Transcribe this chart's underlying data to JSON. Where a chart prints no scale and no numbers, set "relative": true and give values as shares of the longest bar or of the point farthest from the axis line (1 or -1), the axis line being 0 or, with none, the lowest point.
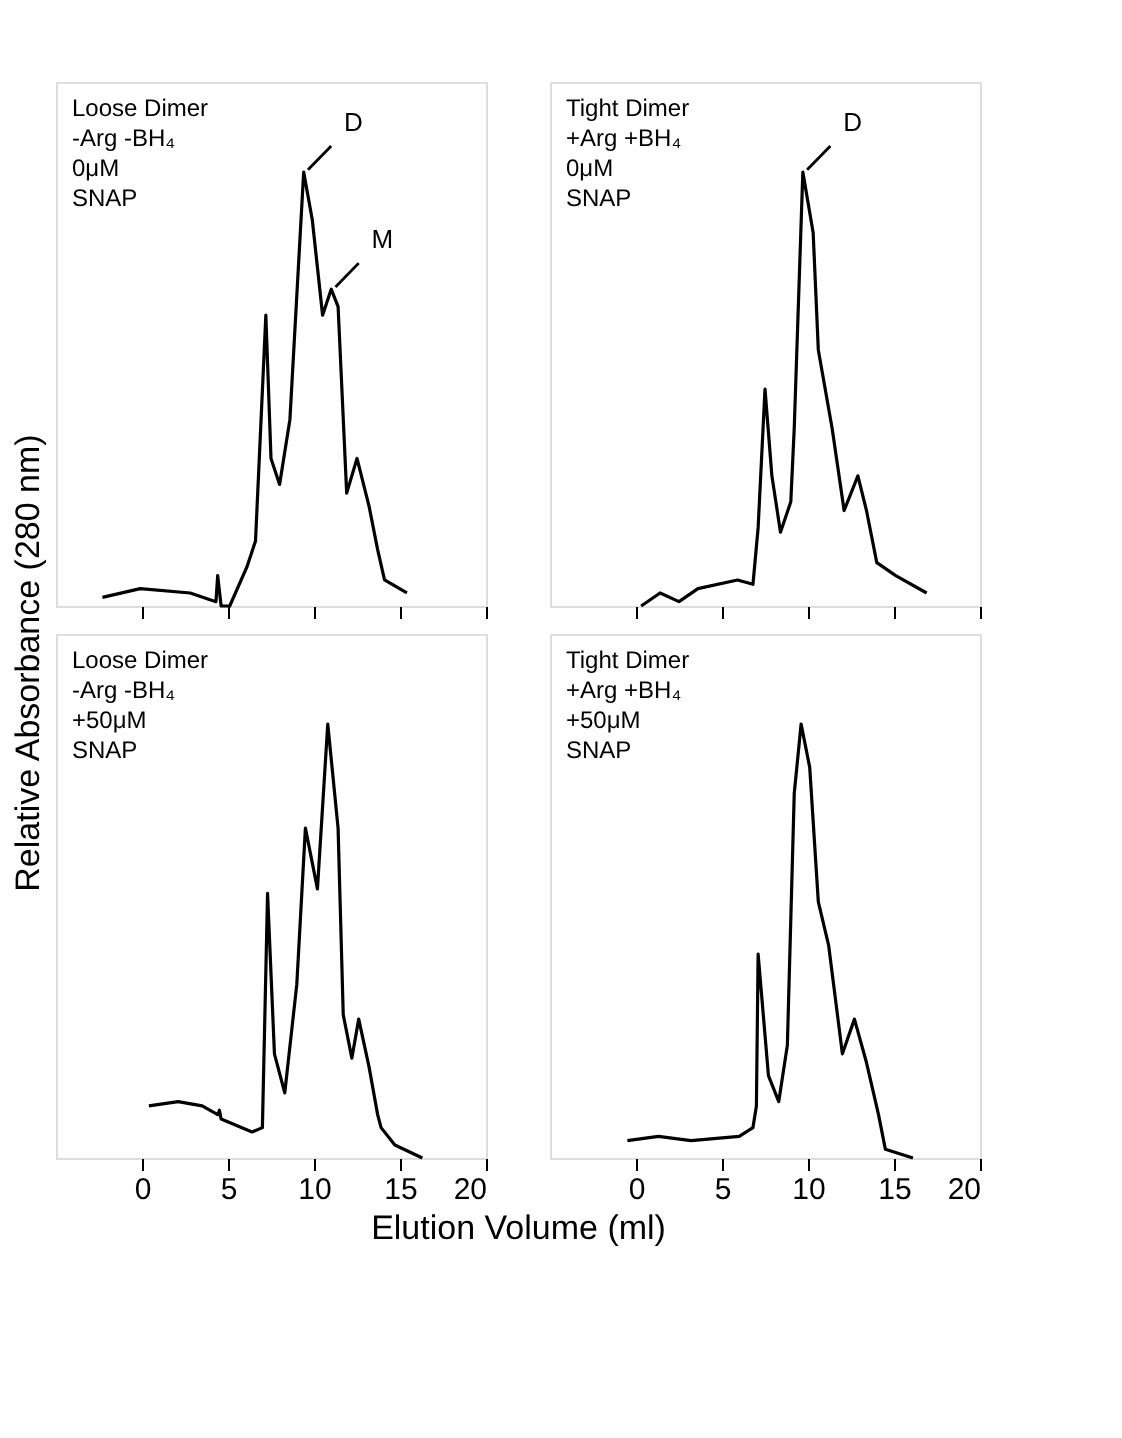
{
  "chart_data": [
    {
      "type": "line",
      "relative": true,
      "ylabel": "Relative Absorbance (280 nm)",
      "xlim": [
        -5,
        20
      ],
      "xticks": [
        0,
        5,
        10,
        15,
        20
      ],
      "tick_labels": false,
      "grid": false,
      "line_style": "solid",
      "marker": "none",
      "annotations": [
        "Loose Dimer",
        "-Arg -BH₄",
        "0μM",
        "SNAP",
        {
          "text": "D",
          "x": 9.4,
          "y": 1.0
        },
        {
          "text": "M",
          "x": 11.0,
          "y": 0.73
        }
      ],
      "x": [
        -2.3,
        -0.1,
        2.8,
        4.3,
        4.4,
        4.6,
        5.1,
        6.1,
        6.6,
        7.2,
        7.5,
        8.0,
        8.6,
        9.4,
        9.9,
        10.5,
        11.0,
        11.4,
        11.9,
        12.5,
        13.2,
        13.7,
        14.1,
        15.4
      ],
      "series": [
        {
          "color": "#000000",
          "values": [
            0.02,
            0.04,
            0.03,
            0.01,
            0.07,
            0.0,
            0.0,
            0.09,
            0.15,
            0.67,
            0.34,
            0.28,
            0.43,
            1.0,
            0.89,
            0.67,
            0.73,
            0.69,
            0.26,
            0.34,
            0.23,
            0.13,
            0.06,
            0.03
          ]
        }
      ]
    },
    {
      "type": "line",
      "relative": true,
      "xlim": [
        -5,
        20
      ],
      "xticks": [
        0,
        5,
        10,
        15,
        20
      ],
      "tick_labels": false,
      "grid": false,
      "line_style": "solid",
      "marker": "none",
      "annotations": [
        "Tight Dimer",
        "+Arg +BH₄",
        "0μM",
        "SNAP",
        {
          "text": "D",
          "x": 9.7,
          "y": 1.0
        }
      ],
      "x": [
        0.3,
        1.4,
        2.5,
        3.6,
        5.9,
        6.8,
        7.1,
        7.5,
        7.9,
        8.4,
        9.0,
        9.2,
        9.7,
        10.3,
        10.6,
        11.4,
        12.1,
        12.9,
        13.4,
        14.0,
        15.1,
        16.9
      ],
      "series": [
        {
          "color": "#000000",
          "values": [
            0.0,
            0.03,
            0.01,
            0.04,
            0.06,
            0.05,
            0.18,
            0.5,
            0.3,
            0.17,
            0.24,
            0.41,
            1.0,
            0.86,
            0.59,
            0.41,
            0.22,
            0.3,
            0.22,
            0.1,
            0.07,
            0.03
          ]
        }
      ]
    },
    {
      "type": "line",
      "relative": true,
      "xlabel": "Elution Volume (ml)",
      "xlim": [
        -5,
        20
      ],
      "xticks": [
        0,
        5,
        10,
        15,
        20
      ],
      "tick_labels": "x",
      "grid": false,
      "line_style": "solid",
      "marker": "none",
      "annotations": [
        "Loose Dimer",
        "-Arg -BH₄",
        "+50μM",
        "SNAP"
      ],
      "x": [
        0.4,
        2.1,
        3.5,
        4.4,
        4.5,
        4.6,
        6.4,
        7.0,
        7.3,
        7.7,
        8.3,
        9.0,
        9.5,
        10.2,
        10.8,
        11.4,
        11.7,
        12.2,
        12.6,
        13.2,
        13.7,
        13.9,
        14.7,
        16.3
      ],
      "series": [
        {
          "color": "#000000",
          "values": [
            0.12,
            0.13,
            0.12,
            0.1,
            0.11,
            0.09,
            0.06,
            0.07,
            0.61,
            0.24,
            0.15,
            0.4,
            0.76,
            0.62,
            1.0,
            0.76,
            0.33,
            0.23,
            0.32,
            0.21,
            0.1,
            0.07,
            0.03,
            0.0
          ]
        }
      ]
    },
    {
      "type": "line",
      "relative": true,
      "xlim": [
        -5,
        20
      ],
      "xticks": [
        0,
        5,
        10,
        15,
        20
      ],
      "tick_labels": "x",
      "grid": false,
      "line_style": "solid",
      "marker": "none",
      "annotations": [
        "Tight Dimer",
        "+Arg +BH₄",
        "+50μM",
        "SNAP"
      ],
      "x": [
        -0.5,
        1.3,
        3.2,
        6.0,
        6.8,
        7.0,
        7.1,
        7.7,
        8.3,
        8.8,
        9.2,
        9.6,
        10.1,
        10.6,
        11.2,
        12.0,
        12.7,
        13.4,
        14.1,
        14.5,
        16.1
      ],
      "series": [
        {
          "color": "#000000",
          "values": [
            0.04,
            0.05,
            0.04,
            0.05,
            0.07,
            0.12,
            0.47,
            0.19,
            0.13,
            0.26,
            0.84,
            1.0,
            0.9,
            0.59,
            0.49,
            0.24,
            0.32,
            0.22,
            0.1,
            0.02,
            0.0
          ]
        }
      ]
    }
  ]
}
